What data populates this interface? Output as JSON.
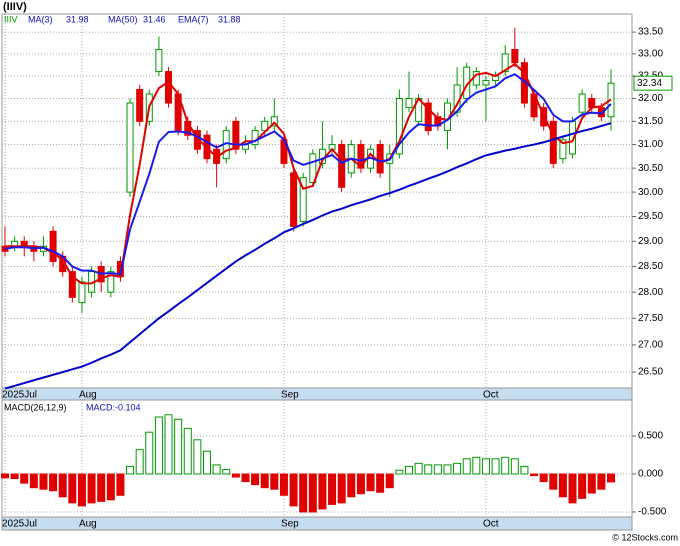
{
  "chart_data": [
    {
      "type": "candlestick",
      "title": "(IIIV)",
      "categories": [
        "2025Jul",
        null,
        null,
        null,
        null,
        null,
        null,
        null,
        "Aug",
        null,
        null,
        null,
        null,
        null,
        null,
        null,
        null,
        null,
        null,
        null,
        null,
        null,
        null,
        null,
        null,
        null,
        null,
        null,
        null,
        "Sep",
        null,
        null,
        null,
        null,
        null,
        null,
        null,
        null,
        null,
        null,
        null,
        null,
        null,
        null,
        null,
        null,
        null,
        null,
        null,
        null,
        "Oct",
        null,
        null,
        null,
        null,
        null,
        null,
        null,
        null,
        null,
        null,
        null,
        null,
        null
      ],
      "series": [
        {
          "name": "IIIV",
          "color": "#009900",
          "down_color": "#e00000",
          "open": [
            28.9,
            28.9,
            29,
            28.9,
            28.8,
            29.2,
            28.7,
            28.4,
            27.8,
            28,
            28.5,
            28,
            28.6,
            30,
            32.2,
            31.5,
            32.6,
            32.6,
            32.1,
            31.5,
            31.3,
            31.2,
            30.9,
            30.7,
            31.5,
            30.9,
            31,
            31.3,
            31.4,
            31.1,
            30.4,
            29.4,
            30.2,
            30.6,
            30.9,
            31,
            30.4,
            31,
            30.5,
            31,
            30.6,
            30.8,
            31.8,
            31.5,
            31.9,
            31.6,
            31.3,
            31.7,
            32,
            32.3,
            32.3,
            32.4,
            32.6,
            33.1,
            32.8,
            32.1,
            31.8,
            31.5,
            30.7,
            30.8,
            31.7,
            32,
            31.8,
            31.6
          ],
          "high": [
            29.3,
            29.1,
            29.1,
            29,
            29.1,
            29.3,
            28.8,
            28.5,
            28.3,
            28.5,
            28.6,
            28.5,
            28.7,
            32,
            32.3,
            32.2,
            33.4,
            32.7,
            32.2,
            31.6,
            31.4,
            31.3,
            31,
            31.4,
            31.6,
            31.2,
            31.4,
            31.6,
            32,
            31.2,
            30.5,
            30.4,
            30.9,
            31.5,
            31.2,
            31.1,
            31.1,
            31.1,
            31,
            31.1,
            31,
            32.2,
            32.6,
            32.1,
            32,
            31.7,
            32,
            32.7,
            32.8,
            32.7,
            32.5,
            32.6,
            33.2,
            33.6,
            32.9,
            32.2,
            31.9,
            31.6,
            31.2,
            31.6,
            32.2,
            32.1,
            31.9,
            32.65
          ],
          "low": [
            28.7,
            28.8,
            28.7,
            28.6,
            28.7,
            28.5,
            28.3,
            27.8,
            27.6,
            27.9,
            28,
            27.9,
            28.2,
            29.9,
            31.4,
            31.4,
            32.5,
            31.8,
            31.2,
            31.1,
            30.8,
            30.6,
            30.1,
            30.6,
            30.8,
            30.8,
            30.9,
            31.2,
            31.3,
            30.5,
            29.2,
            29.3,
            30.1,
            30.5,
            30.8,
            30,
            30.3,
            30.4,
            30.4,
            30.3,
            29.9,
            30.7,
            31.7,
            31.4,
            31.2,
            31.3,
            30.9,
            31.6,
            31.9,
            32.2,
            31.5,
            32.3,
            32.5,
            32.7,
            31.8,
            31.5,
            31.3,
            30.5,
            30.6,
            30.7,
            31.6,
            31.7,
            31.5,
            31.3
          ],
          "close": [
            28.8,
            29,
            28.9,
            28.8,
            28.9,
            28.6,
            28.4,
            27.9,
            28.2,
            28.4,
            28.2,
            28.4,
            28.3,
            31.9,
            31.5,
            32.1,
            33.1,
            31.9,
            31.3,
            31.2,
            30.9,
            30.7,
            30.6,
            31.3,
            30.9,
            31,
            31.3,
            31.5,
            31.6,
            30.6,
            29.3,
            30.3,
            30.8,
            30.9,
            31,
            30.1,
            31,
            30.5,
            30.9,
            30.4,
            30.8,
            32,
            32,
            32,
            31.3,
            31.4,
            31.9,
            32.3,
            32.7,
            32.6,
            32.4,
            32.5,
            33,
            32.8,
            31.9,
            31.6,
            31.4,
            30.6,
            31.1,
            31.5,
            32.1,
            31.8,
            31.6,
            32.34
          ]
        },
        {
          "name": "MA(3)",
          "color": "#e00000",
          "values": [
            28.9,
            28.9,
            28.9,
            28.9,
            28.87,
            28.77,
            28.63,
            28.3,
            28.17,
            28.17,
            28.27,
            28.33,
            28.3,
            29.53,
            30.57,
            31.83,
            32.23,
            32.37,
            32.1,
            31.47,
            31.13,
            30.93,
            30.73,
            30.87,
            30.93,
            31.07,
            31.07,
            31.27,
            31.47,
            31.23,
            30.5,
            30.07,
            30.13,
            30.67,
            30.9,
            30.67,
            30.7,
            30.53,
            30.8,
            30.6,
            30.7,
            31.07,
            31.6,
            32,
            31.77,
            31.57,
            31.53,
            31.87,
            32.3,
            32.53,
            32.57,
            32.5,
            32.63,
            32.77,
            32.57,
            32.1,
            31.63,
            31.2,
            31.03,
            31.07,
            31.57,
            31.8,
            31.83,
            31.98
          ]
        },
        {
          "name": "MA(50)",
          "color": "#0000cc",
          "values": [
            26.2,
            26.25,
            26.3,
            26.35,
            26.4,
            26.45,
            26.5,
            26.55,
            26.6,
            26.67,
            26.75,
            26.82,
            26.9,
            27.05,
            27.2,
            27.35,
            27.5,
            27.63,
            27.77,
            27.9,
            28.04,
            28.18,
            28.32,
            28.46,
            28.6,
            28.72,
            28.83,
            28.95,
            29.06,
            29.18,
            29.26,
            29.35,
            29.43,
            29.52,
            29.6,
            29.66,
            29.73,
            29.79,
            29.85,
            29.92,
            29.98,
            30.05,
            30.13,
            30.2,
            30.28,
            30.35,
            30.43,
            30.52,
            30.6,
            30.69,
            30.77,
            30.82,
            30.87,
            30.91,
            30.96,
            31,
            31.05,
            31.11,
            31.17,
            31.23,
            31.29,
            31.34,
            31.4,
            31.46
          ]
        },
        {
          "name": "EMA(7)",
          "color": "#1a1aee",
          "values": [
            28.85,
            28.88,
            28.88,
            28.86,
            28.87,
            28.8,
            28.7,
            28.5,
            28.42,
            28.42,
            28.36,
            28.37,
            28.35,
            29.24,
            29.8,
            30.38,
            31.06,
            31.27,
            31.28,
            31.26,
            31.17,
            31.05,
            30.94,
            31.03,
            31,
            31,
            31.08,
            31.18,
            31.28,
            31.11,
            30.66,
            30.57,
            30.63,
            30.7,
            30.78,
            30.61,
            30.7,
            30.66,
            30.72,
            30.64,
            30.68,
            31.01,
            31.26,
            31.44,
            31.41,
            31.41,
            31.53,
            31.72,
            31.97,
            32.13,
            32.2,
            32.27,
            32.45,
            32.54,
            32.38,
            32.19,
            31.99,
            31.64,
            31.5,
            31.5,
            31.65,
            31.69,
            31.67,
            31.88
          ]
        }
      ],
      "ylim": [
        26.21,
        33.92
      ],
      "log_scale": true,
      "grid": true,
      "yticks": [
        {
          "value": 26.5,
          "label": "26.50"
        },
        {
          "value": 27,
          "label": "27.00"
        },
        {
          "value": 27.5,
          "label": "27.50"
        },
        {
          "value": 28,
          "label": "28.00"
        },
        {
          "value": 28.5,
          "label": "28.50"
        },
        {
          "value": 29,
          "label": "29.00"
        },
        {
          "value": 29.5,
          "label": "29.50"
        },
        {
          "value": 30,
          "label": "30.00"
        },
        {
          "value": 30.5,
          "label": "30.50"
        },
        {
          "value": 31,
          "label": "31.00"
        },
        {
          "value": 31.5,
          "label": "31.50"
        },
        {
          "value": 32,
          "label": "32.00"
        },
        {
          "value": 32.5,
          "label": "32.50"
        },
        {
          "value": 33,
          "label": "33.00"
        },
        {
          "value": 33.5,
          "label": "33.50"
        }
      ]
    },
    {
      "type": "bar",
      "annotations": [
        "MACD(26,12,9)",
        "MACD:-0.104"
      ],
      "categories": [
        "2025Jul",
        null,
        null,
        null,
        null,
        null,
        null,
        null,
        "Aug",
        null,
        null,
        null,
        null,
        null,
        null,
        null,
        null,
        null,
        null,
        null,
        null,
        null,
        null,
        null,
        null,
        null,
        null,
        null,
        null,
        "Sep",
        null,
        null,
        null,
        null,
        null,
        null,
        null,
        null,
        null,
        null,
        null,
        null,
        null,
        null,
        null,
        null,
        null,
        null,
        null,
        null,
        "Oct",
        null,
        null,
        null,
        null,
        null,
        null,
        null,
        null,
        null,
        null,
        null,
        null,
        null
      ],
      "values": [
        -0.05,
        -0.06,
        -0.12,
        -0.18,
        -0.2,
        -0.22,
        -0.3,
        -0.38,
        -0.42,
        -0.38,
        -0.36,
        -0.34,
        -0.28,
        0.1,
        0.32,
        0.55,
        0.75,
        0.78,
        0.72,
        0.6,
        0.45,
        0.3,
        0.12,
        0.06,
        -0.04,
        -0.1,
        -0.14,
        -0.18,
        -0.2,
        -0.28,
        -0.42,
        -0.5,
        -0.5,
        -0.46,
        -0.4,
        -0.38,
        -0.3,
        -0.26,
        -0.22,
        -0.24,
        -0.18,
        0.05,
        0.1,
        0.14,
        0.12,
        0.12,
        0.12,
        0.14,
        0.2,
        0.22,
        0.2,
        0.2,
        0.22,
        0.2,
        0.1,
        -0.02,
        -0.1,
        -0.2,
        -0.3,
        -0.38,
        -0.32,
        -0.25,
        -0.2,
        -0.104
      ],
      "up_color": "#009900",
      "down_color": "#e00000",
      "ylim": [
        -0.566,
        0.974
      ],
      "grid": true,
      "yticks": [
        {
          "value": -0.5,
          "label": "-0.500"
        },
        {
          "value": 0,
          "label": "0.000"
        },
        {
          "value": 0.5,
          "label": "0.500"
        }
      ]
    }
  ],
  "footer": "© 12Stocks.com"
}
